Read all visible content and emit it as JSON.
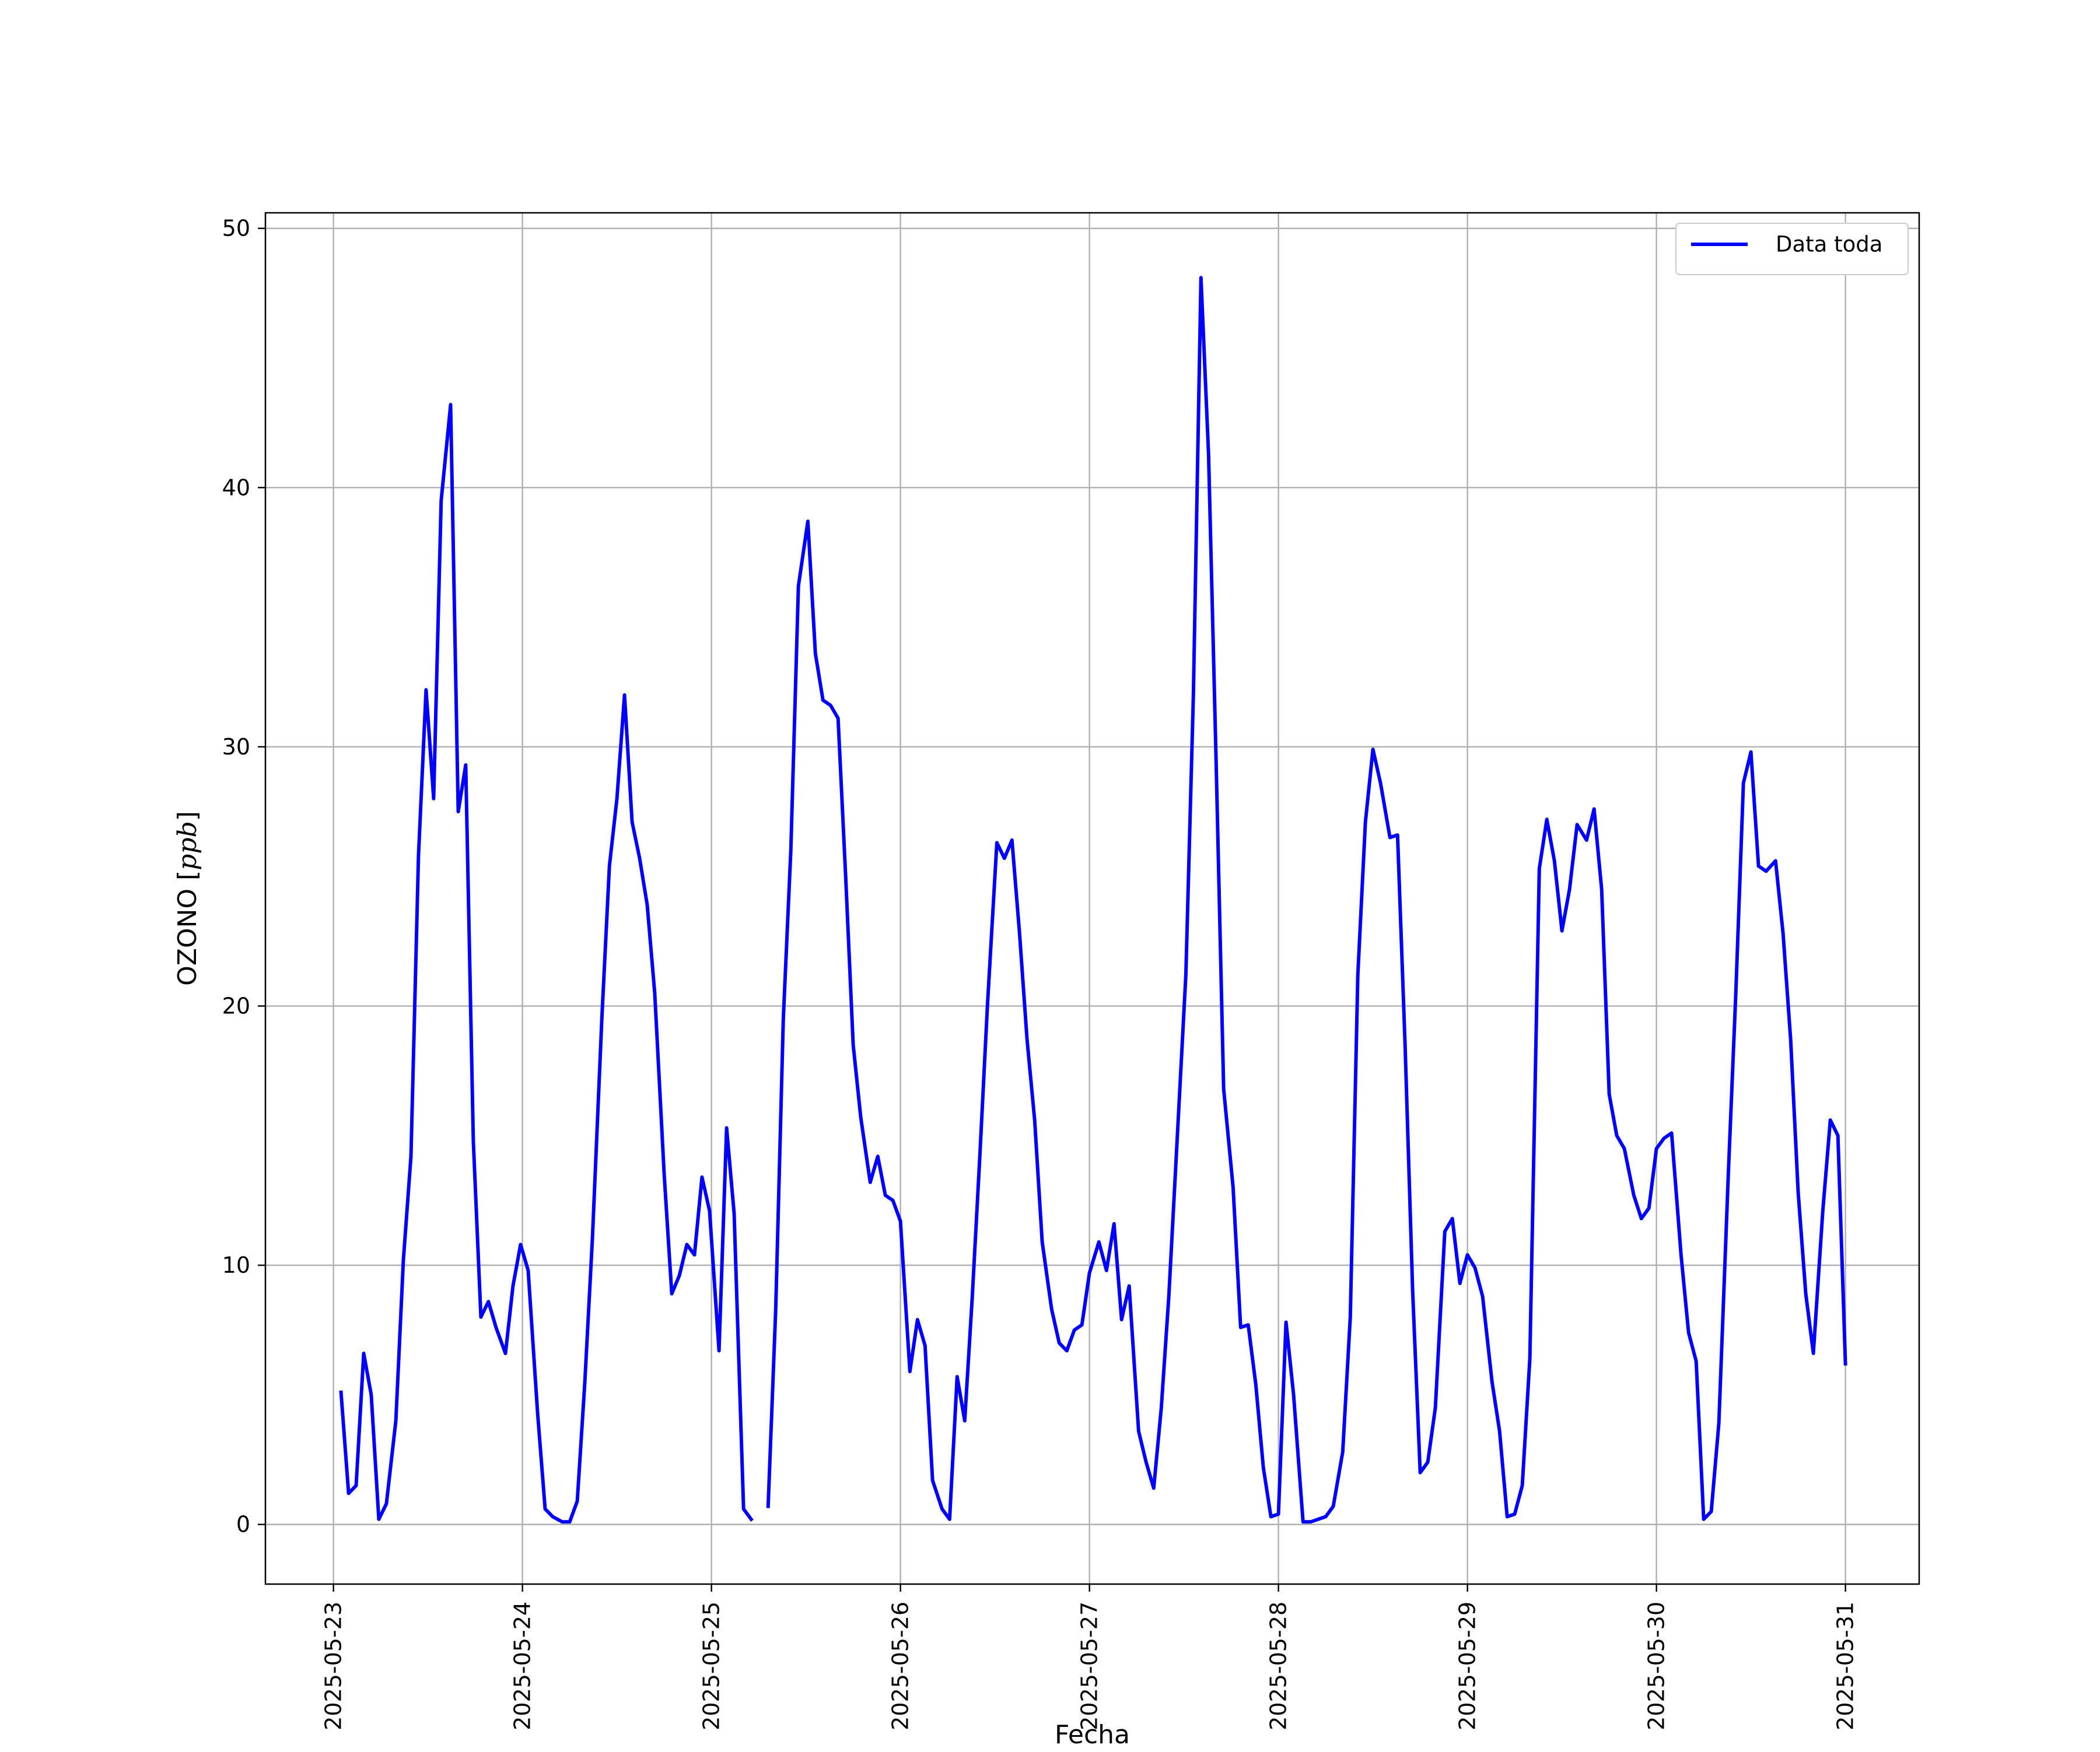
{
  "chart_data": {
    "type": "line",
    "title": "",
    "xlabel": "Fecha",
    "ylabel": "OZONO [ppb]",
    "ylabel_parts": {
      "text": "OZONO [",
      "unit": "ppb",
      "close": "]"
    },
    "x_ticks": [
      "2025-05-23",
      "2025-05-24",
      "2025-05-25",
      "2025-05-26",
      "2025-05-27",
      "2025-05-28",
      "2025-05-29",
      "2025-05-30",
      "2025-05-31"
    ],
    "y_ticks": [
      0,
      10,
      20,
      30,
      40,
      50
    ],
    "xlim_days": [
      -0.36,
      8.39
    ],
    "ylim": [
      -2.3,
      50.6
    ],
    "grid": true,
    "legend": {
      "position": "top-right",
      "entries": [
        "Data toda"
      ]
    },
    "series": [
      {
        "name": "Data toda",
        "color": "#0000ff",
        "segments": [
          [
            [
              0.04,
              5.1
            ],
            [
              0.08,
              1.2
            ],
            [
              0.12,
              1.5
            ],
            [
              0.16,
              6.6
            ],
            [
              0.2,
              5.0
            ],
            [
              0.24,
              0.2
            ],
            [
              0.28,
              0.8
            ],
            [
              0.33,
              4.0
            ],
            [
              0.37,
              10.2
            ],
            [
              0.41,
              14.2
            ],
            [
              0.45,
              25.8
            ],
            [
              0.49,
              32.2
            ],
            [
              0.53,
              28.0
            ],
            [
              0.57,
              39.5
            ],
            [
              0.62,
              43.2
            ],
            [
              0.66,
              27.5
            ],
            [
              0.7,
              29.3
            ],
            [
              0.74,
              14.8
            ],
            [
              0.78,
              8.0
            ],
            [
              0.82,
              8.6
            ],
            [
              0.86,
              7.6
            ],
            [
              0.91,
              6.6
            ],
            [
              0.95,
              9.2
            ],
            [
              0.99,
              10.8
            ],
            [
              1.03,
              9.8
            ],
            [
              1.08,
              4.3
            ],
            [
              1.12,
              0.6
            ],
            [
              1.16,
              0.3
            ],
            [
              1.21,
              0.1
            ],
            [
              1.25,
              0.1
            ],
            [
              1.29,
              0.9
            ],
            [
              1.33,
              5.5
            ],
            [
              1.37,
              11.0
            ],
            [
              1.42,
              19.5
            ],
            [
              1.46,
              25.4
            ],
            [
              1.5,
              28.0
            ],
            [
              1.54,
              32.0
            ],
            [
              1.58,
              27.1
            ],
            [
              1.62,
              25.7
            ],
            [
              1.66,
              23.9
            ],
            [
              1.7,
              20.5
            ],
            [
              1.75,
              13.5
            ],
            [
              1.79,
              8.9
            ],
            [
              1.83,
              9.6
            ],
            [
              1.87,
              10.8
            ],
            [
              1.91,
              10.4
            ],
            [
              1.95,
              13.4
            ],
            [
              1.99,
              12.1
            ],
            [
              2.04,
              6.7
            ],
            [
              2.08,
              15.3
            ],
            [
              2.12,
              12.0
            ],
            [
              2.17,
              0.6
            ],
            [
              2.21,
              0.2
            ]
          ],
          [
            [
              2.3,
              0.7
            ],
            [
              2.34,
              8.3
            ],
            [
              2.38,
              19.5
            ],
            [
              2.42,
              26.0
            ],
            [
              2.46,
              36.2
            ],
            [
              2.51,
              38.7
            ],
            [
              2.55,
              33.6
            ],
            [
              2.59,
              31.8
            ],
            [
              2.63,
              31.6
            ],
            [
              2.67,
              31.1
            ],
            [
              2.71,
              25.0
            ],
            [
              2.75,
              18.5
            ],
            [
              2.79,
              15.7
            ],
            [
              2.84,
              13.2
            ],
            [
              2.88,
              14.2
            ],
            [
              2.92,
              12.7
            ],
            [
              2.96,
              12.5
            ],
            [
              3.0,
              11.7
            ],
            [
              3.05,
              5.9
            ],
            [
              3.09,
              7.9
            ],
            [
              3.13,
              6.9
            ],
            [
              3.17,
              1.7
            ],
            [
              3.22,
              0.6
            ],
            [
              3.26,
              0.2
            ],
            [
              3.3,
              5.7
            ],
            [
              3.34,
              4.0
            ],
            [
              3.38,
              8.8
            ],
            [
              3.42,
              14.2
            ],
            [
              3.46,
              20.0
            ],
            [
              3.51,
              26.3
            ],
            [
              3.55,
              25.7
            ],
            [
              3.59,
              26.4
            ],
            [
              3.63,
              22.8
            ],
            [
              3.67,
              18.7
            ],
            [
              3.71,
              15.6
            ],
            [
              3.75,
              10.9
            ],
            [
              3.8,
              8.3
            ],
            [
              3.84,
              7.0
            ],
            [
              3.88,
              6.7
            ],
            [
              3.92,
              7.5
            ],
            [
              3.96,
              7.7
            ],
            [
              4.0,
              9.7
            ],
            [
              4.05,
              10.9
            ],
            [
              4.09,
              9.8
            ],
            [
              4.13,
              11.6
            ],
            [
              4.17,
              7.9
            ],
            [
              4.21,
              9.2
            ],
            [
              4.26,
              3.6
            ],
            [
              4.3,
              2.4
            ],
            [
              4.34,
              1.4
            ],
            [
              4.38,
              4.5
            ],
            [
              4.42,
              8.8
            ],
            [
              4.46,
              14.3
            ],
            [
              4.51,
              21.2
            ],
            [
              4.55,
              32.0
            ],
            [
              4.59,
              48.1
            ],
            [
              4.63,
              41.3
            ],
            [
              4.67,
              29.5
            ],
            [
              4.71,
              16.8
            ],
            [
              4.76,
              13.0
            ],
            [
              4.8,
              7.6
            ],
            [
              4.84,
              7.7
            ],
            [
              4.88,
              5.4
            ],
            [
              4.92,
              2.2
            ],
            [
              4.96,
              0.3
            ],
            [
              5.0,
              0.4
            ],
            [
              5.04,
              7.8
            ],
            [
              5.08,
              5.0
            ],
            [
              5.13,
              0.1
            ],
            [
              5.17,
              0.1
            ],
            [
              5.21,
              0.2
            ],
            [
              5.25,
              0.3
            ],
            [
              5.29,
              0.7
            ],
            [
              5.34,
              2.8
            ],
            [
              5.38,
              8.0
            ],
            [
              5.42,
              21.2
            ],
            [
              5.46,
              27.1
            ],
            [
              5.5,
              29.9
            ],
            [
              5.54,
              28.6
            ],
            [
              5.59,
              26.5
            ],
            [
              5.63,
              26.6
            ],
            [
              5.67,
              18.5
            ],
            [
              5.71,
              9.0
            ],
            [
              5.75,
              2.0
            ],
            [
              5.79,
              2.4
            ],
            [
              5.83,
              4.5
            ],
            [
              5.88,
              11.3
            ],
            [
              5.92,
              11.8
            ],
            [
              5.96,
              9.3
            ],
            [
              6.0,
              10.4
            ],
            [
              6.04,
              9.9
            ],
            [
              6.08,
              8.8
            ],
            [
              6.13,
              5.5
            ],
            [
              6.17,
              3.6
            ],
            [
              6.21,
              0.3
            ],
            [
              6.25,
              0.4
            ],
            [
              6.29,
              1.5
            ],
            [
              6.33,
              6.4
            ],
            [
              6.38,
              25.3
            ],
            [
              6.42,
              27.2
            ],
            [
              6.46,
              25.6
            ],
            [
              6.5,
              22.9
            ],
            [
              6.54,
              24.5
            ],
            [
              6.58,
              27.0
            ],
            [
              6.63,
              26.4
            ],
            [
              6.67,
              27.6
            ],
            [
              6.71,
              24.5
            ],
            [
              6.75,
              16.6
            ],
            [
              6.79,
              15.0
            ],
            [
              6.83,
              14.5
            ],
            [
              6.88,
              12.7
            ],
            [
              6.92,
              11.8
            ],
            [
              6.96,
              12.2
            ],
            [
              7.0,
              14.5
            ],
            [
              7.04,
              14.9
            ],
            [
              7.08,
              15.1
            ],
            [
              7.13,
              10.4
            ],
            [
              7.17,
              7.4
            ],
            [
              7.21,
              6.3
            ],
            [
              7.25,
              0.2
            ],
            [
              7.29,
              0.5
            ],
            [
              7.33,
              3.9
            ],
            [
              7.38,
              13.5
            ],
            [
              7.42,
              20.5
            ],
            [
              7.46,
              28.6
            ],
            [
              7.5,
              29.8
            ],
            [
              7.54,
              25.4
            ],
            [
              7.58,
              25.2
            ],
            [
              7.63,
              25.6
            ],
            [
              7.67,
              22.8
            ],
            [
              7.71,
              18.7
            ],
            [
              7.75,
              12.8
            ],
            [
              7.79,
              8.9
            ],
            [
              7.83,
              6.6
            ],
            [
              7.88,
              12.1
            ],
            [
              7.92,
              15.6
            ],
            [
              7.96,
              15.0
            ],
            [
              8.0,
              6.2
            ]
          ]
        ]
      }
    ]
  }
}
